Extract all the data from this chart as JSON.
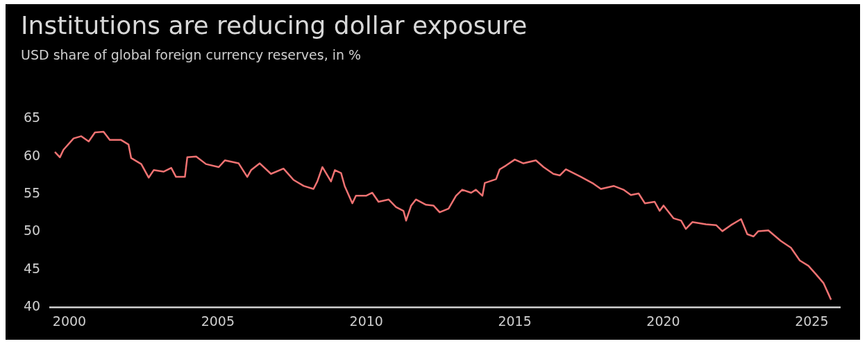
{
  "chart_data": {
    "type": "line",
    "title": "Institutions are reducing dollar exposure",
    "subtitle": "USD share of global foreign currency reserves, in %",
    "x": [
      1999.51,
      1999.68,
      1999.8,
      2000.14,
      2000.4,
      2000.65,
      2000.86,
      2001.15,
      2001.36,
      2001.74,
      2001.99,
      2002.08,
      2002.42,
      2002.67,
      2002.84,
      2003.17,
      2003.43,
      2003.59,
      2003.89,
      2003.97,
      2004.27,
      2004.6,
      2005.03,
      2005.24,
      2005.7,
      2005.99,
      2006.12,
      2006.41,
      2006.79,
      2007.21,
      2007.55,
      2007.89,
      2008.22,
      2008.35,
      2008.52,
      2008.81,
      2008.94,
      2009.15,
      2009.27,
      2009.53,
      2009.65,
      2009.99,
      2010.2,
      2010.41,
      2010.75,
      2011.0,
      2011.25,
      2011.34,
      2011.51,
      2011.67,
      2012.01,
      2012.26,
      2012.47,
      2012.77,
      2013.02,
      2013.23,
      2013.53,
      2013.69,
      2013.91,
      2013.99,
      2014.37,
      2014.49,
      2014.7,
      2015.0,
      2015.29,
      2015.71,
      2015.97,
      2016.3,
      2016.52,
      2016.72,
      2017.23,
      2017.65,
      2017.9,
      2018.33,
      2018.66,
      2018.91,
      2019.17,
      2019.38,
      2019.71,
      2019.88,
      2020.01,
      2020.35,
      2020.6,
      2020.76,
      2020.98,
      2021.44,
      2021.78,
      2021.99,
      2022.28,
      2022.62,
      2022.83,
      2023.04,
      2023.2,
      2023.54,
      2023.96,
      2024.3,
      2024.6,
      2024.89,
      2025.14,
      2025.4,
      2025.56,
      2025.65
    ],
    "values": [
      60.6,
      59.9,
      60.9,
      62.4,
      62.7,
      62.0,
      63.2,
      63.3,
      62.2,
      62.2,
      61.6,
      59.8,
      59.0,
      57.2,
      58.2,
      58.0,
      58.5,
      57.3,
      57.3,
      59.9,
      60.0,
      59.0,
      58.6,
      59.5,
      59.1,
      57.3,
      58.2,
      59.1,
      57.7,
      58.4,
      56.9,
      56.1,
      55.7,
      56.7,
      58.6,
      56.7,
      58.2,
      57.8,
      56.1,
      53.8,
      54.8,
      54.8,
      55.2,
      54.0,
      54.3,
      53.3,
      52.8,
      51.5,
      53.5,
      54.3,
      53.6,
      53.5,
      52.6,
      53.1,
      54.8,
      55.6,
      55.2,
      55.6,
      54.8,
      56.5,
      57.0,
      58.3,
      58.8,
      59.6,
      59.1,
      59.5,
      58.6,
      57.7,
      57.5,
      58.3,
      57.3,
      56.4,
      55.7,
      56.1,
      55.6,
      54.9,
      55.1,
      53.8,
      54.0,
      52.8,
      53.5,
      51.8,
      51.5,
      50.4,
      51.3,
      51.0,
      50.9,
      50.1,
      50.9,
      51.7,
      49.7,
      49.4,
      50.1,
      50.2,
      48.8,
      47.9,
      46.2,
      45.5,
      44.4,
      43.2,
      41.8,
      41.0
    ],
    "color": "#f07272",
    "xlim": [
      1999.35,
      2025.95
    ],
    "ylim": [
      40,
      65
    ],
    "xticks": [
      2000,
      2005,
      2010,
      2015,
      2020,
      2025
    ],
    "yticks": [
      40,
      45,
      50,
      55,
      60,
      65
    ],
    "grid": false,
    "legend": false,
    "marker": "none"
  }
}
